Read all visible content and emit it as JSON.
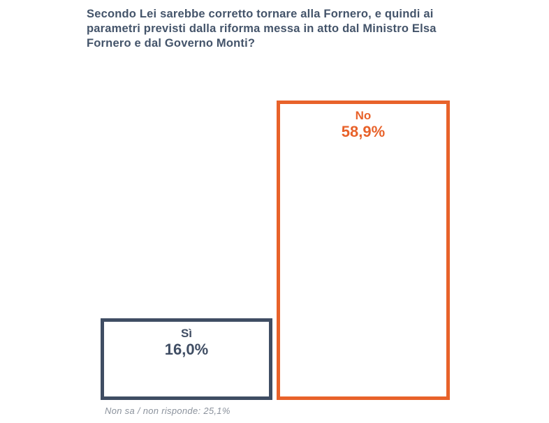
{
  "title_lines": [
    "Secondo Lei sarebbe corretto tornare alla Fornero, e quindi ai",
    "parametri previsti dalla riforma messa in atto dal Ministro Elsa",
    "Fornero e dal Governo Monti?"
  ],
  "footnote": "Non sa / non risponde: 25,1%",
  "colors": {
    "title": "#44546A",
    "navy": "#3F4D63",
    "orange": "#E8622A",
    "footnote": "#8B929C"
  },
  "chart_data": {
    "type": "bar",
    "title": "Secondo Lei sarebbe corretto tornare alla Fornero, e quindi ai parametri previsti dalla riforma messa in atto dal Ministro Elsa Fornero e dal Governo Monti?",
    "categories": [
      "Sì",
      "No"
    ],
    "values": [
      16.0,
      58.9
    ],
    "value_labels": [
      "16,0%",
      "58,9%"
    ],
    "series_colors": [
      "#3F4D63",
      "#E8622A"
    ],
    "bar_style": "outlined-rectangles-white-fill",
    "annotation": "Non sa / non risponde: 25,1%",
    "xlabel": "",
    "ylabel": "",
    "ylim": [
      0,
      58.9
    ],
    "grid": false,
    "axes_visible": false,
    "legend": "none"
  }
}
